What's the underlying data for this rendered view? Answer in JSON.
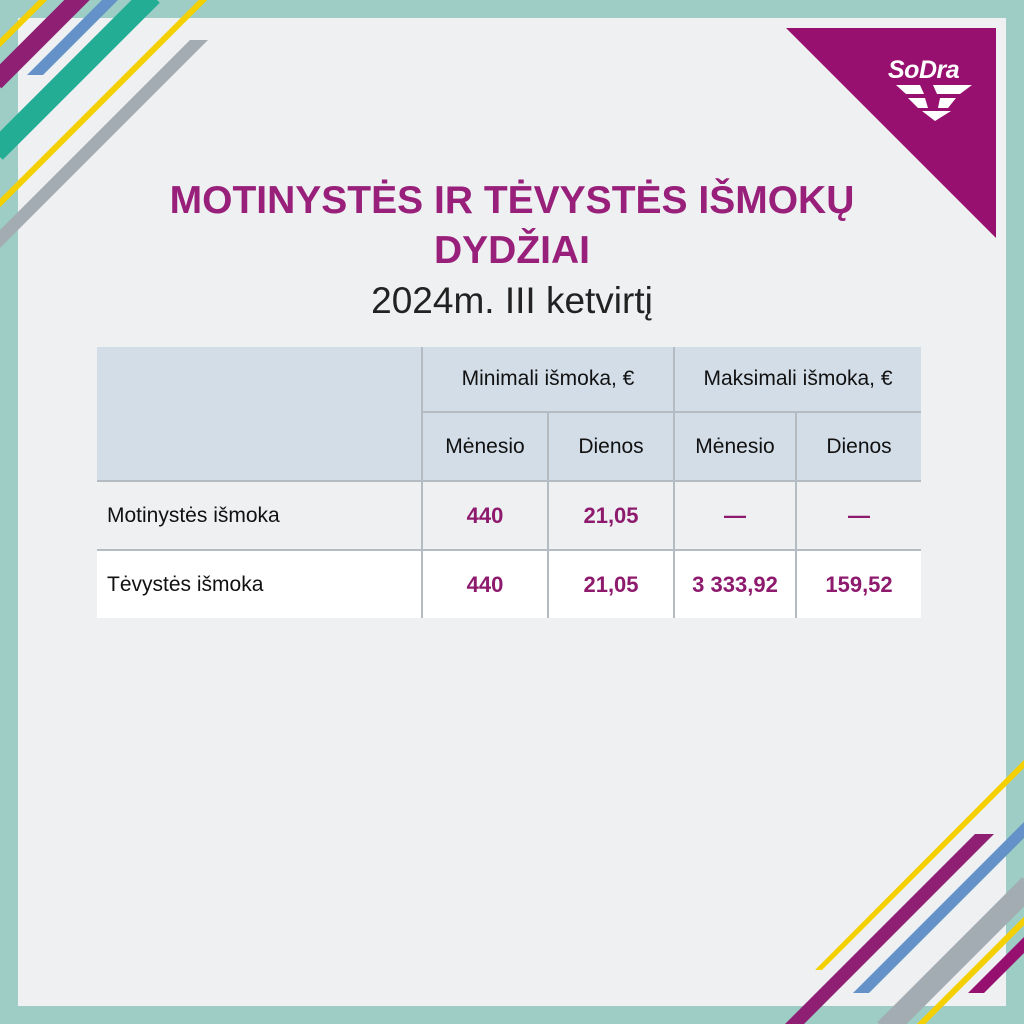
{
  "brand": {
    "logo_text": "SoDra",
    "color": "#98207a"
  },
  "header": {
    "title_line1": "MOTINYSTĖS IR TĖVYSTĖS IŠMOKŲ",
    "title_line2": "DYDŽIAI",
    "subtitle": "2024m. III ketvirtį"
  },
  "table": {
    "group_headers": [
      "Minimali išmoka, €",
      "Maksimali išmoka, €"
    ],
    "sub_headers": [
      "Mėnesio",
      "Dienos",
      "Mėnesio",
      "Dienos"
    ],
    "rows": [
      {
        "label": "Motinystės išmoka",
        "values": [
          "440",
          "21,05",
          "—",
          "—"
        ]
      },
      {
        "label": "Tėvystės išmoka",
        "values": [
          "440",
          "21,05",
          "3 333,92",
          "159,52"
        ]
      }
    ]
  },
  "colors": {
    "frame": "#9dcdc5",
    "background": "#eff0f2",
    "header_bg": "#d3dde8",
    "value": "#8e1a6e"
  }
}
